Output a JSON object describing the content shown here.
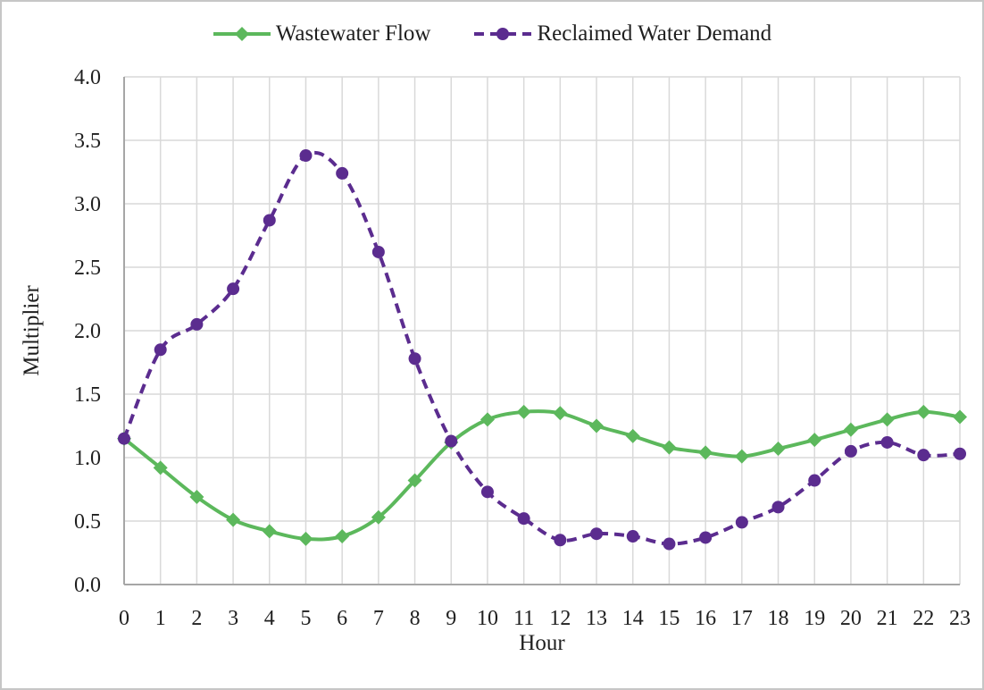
{
  "page": {
    "background": "#ffffff",
    "frame_border_color": "#c6c6c6"
  },
  "chart_data": {
    "type": "line",
    "title": "",
    "xlabel": "Hour",
    "ylabel": "Multiplier",
    "categories": [
      "0",
      "1",
      "2",
      "3",
      "4",
      "5",
      "6",
      "7",
      "8",
      "9",
      "10",
      "11",
      "12",
      "13",
      "14",
      "15",
      "16",
      "17",
      "18",
      "19",
      "20",
      "21",
      "22",
      "23"
    ],
    "ylim": [
      0,
      4
    ],
    "ytick_step": 0.5,
    "ytick_labels": [
      "0.0",
      "0.5",
      "1.0",
      "1.5",
      "2.0",
      "2.5",
      "3.0",
      "3.5",
      "4.0"
    ],
    "grid": true,
    "gridline_color": "#d9d9d9",
    "axis_color": "#a6a6a6",
    "text_color": "#1f1f1f",
    "legend_position": "top",
    "line_smoothing": true,
    "series": [
      {
        "name": "Wastewater Flow",
        "color": "#5cb85c",
        "marker": "diamond",
        "line_style": "solid",
        "values": [
          1.15,
          0.92,
          0.69,
          0.51,
          0.42,
          0.36,
          0.38,
          0.53,
          0.82,
          1.12,
          1.3,
          1.36,
          1.35,
          1.25,
          1.17,
          1.08,
          1.04,
          1.01,
          1.07,
          1.14,
          1.22,
          1.3,
          1.36,
          1.32
        ]
      },
      {
        "name": "Reclaimed Water Demand",
        "color": "#5b2c8f",
        "marker": "circle",
        "line_style": "dashed",
        "values": [
          1.15,
          1.85,
          2.05,
          2.33,
          2.87,
          3.38,
          3.24,
          2.62,
          1.78,
          1.13,
          0.73,
          0.52,
          0.35,
          0.4,
          0.38,
          0.32,
          0.37,
          0.49,
          0.61,
          0.82,
          1.05,
          1.12,
          1.02,
          1.03
        ]
      }
    ]
  }
}
